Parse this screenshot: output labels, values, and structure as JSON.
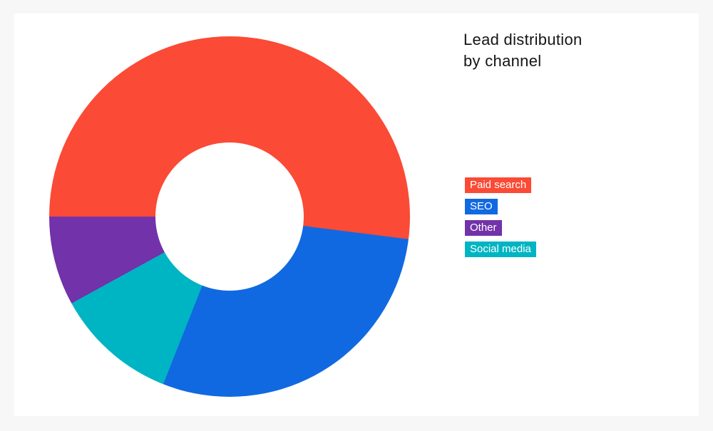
{
  "page": {
    "background_color": "#f7f7f7",
    "card_color": "#ffffff",
    "title_color": "#151515"
  },
  "title": {
    "lines": [
      "Lead distribution",
      "by channel"
    ]
  },
  "chart_data": {
    "type": "pie",
    "subtype": "donut",
    "title": "Lead distribution by channel",
    "unit": "percent",
    "slices": [
      {
        "label": "Paid search",
        "value": 52,
        "color": "#fb4a35"
      },
      {
        "label": "SEO",
        "value": 29,
        "color": "#1169e1"
      },
      {
        "label": "Other",
        "value": 8,
        "color": "#7232a9"
      },
      {
        "label": "Social media",
        "value": 11,
        "color": "#00b5c3"
      }
    ],
    "draw_order": [
      "Paid search",
      "SEO",
      "Social media",
      "Other"
    ],
    "start_angle_deg": 270,
    "direction": "clockwise",
    "inner_radius_ratio": 0.41,
    "hole_color": "#ffffff",
    "legend_position": "right",
    "legend_style": "colored-chips-white-text"
  }
}
